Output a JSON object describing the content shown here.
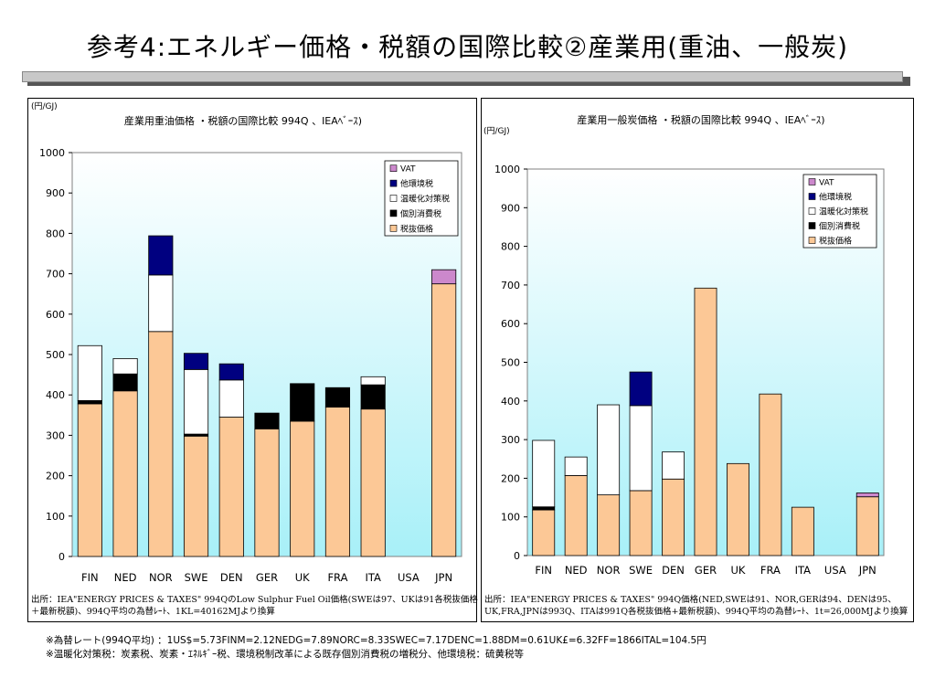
{
  "title": "参考4:エネルギー価格・税額の国際比較②産業用(重油、一般炭)",
  "notes": [
    "※為替レート(994Q平均) ：1US$=5.73FINM=2.12NEDG=7.89NORC=8.33SWEC=7.17DENC=1.88DM=0.61UK£=6.32FF=1866ITAL=104.5円",
    "※温暖化対策税：炭素税、炭素・ｴﾈﾙｷﾞｰ税、環境税制改革による既存個別消費税の増税分、他環境税：硫黄税等"
  ],
  "chart_data": [
    {
      "type": "bar",
      "stacked": true,
      "title": "産業用重油価格 ・税額の国際比較 994Q 、IEAﾍﾞｰｽ)",
      "unit_label": "(円/GJ)",
      "ylim": [
        0,
        1000
      ],
      "yticks": [
        0,
        100,
        200,
        300,
        400,
        500,
        600,
        700,
        800,
        900,
        1000
      ],
      "grid": false,
      "legend_position": "top-right",
      "categories": [
        "FIN",
        "NED",
        "NOR",
        "SWE",
        "DEN",
        "GER",
        "UK",
        "FRA",
        "ITA",
        "USA",
        "JPN"
      ],
      "series": [
        {
          "name": "税抜価格",
          "color": "#fcc896",
          "values": [
            378,
            410,
            557,
            298,
            345,
            316,
            335,
            370,
            365,
            0,
            675
          ]
        },
        {
          "name": "個別消費税",
          "color": "#000000",
          "values": [
            8,
            42,
            0,
            5,
            0,
            39,
            93,
            48,
            60,
            0,
            0
          ]
        },
        {
          "name": "温暖化対策税",
          "color": "#ffffff",
          "values": [
            136,
            38,
            140,
            160,
            92,
            0,
            0,
            0,
            20,
            0,
            0
          ]
        },
        {
          "name": "他環境税",
          "color": "#000080",
          "values": [
            0,
            0,
            97,
            40,
            40,
            0,
            0,
            0,
            0,
            0,
            0
          ]
        },
        {
          "name": "VAT",
          "color": "#cc88cc",
          "values": [
            0,
            0,
            0,
            0,
            0,
            0,
            0,
            0,
            0,
            0,
            35
          ]
        }
      ],
      "source": "出所：IEA\"ENERGY PRICES & TAXES\" 994QのLow Sulphur Fuel Oil価格(SWEは97、UKは91各税抜価格\n＋最新税額)、994Q平均の為替ﾚｰﾄ、1KL=40162MJより換算"
    },
    {
      "type": "bar",
      "stacked": true,
      "title": "産業用一般炭価格 ・税額の国際比較 994Q 、IEAﾍﾞｰｽ)",
      "unit_label": "(円/GJ)",
      "ylim": [
        0,
        1000
      ],
      "yticks": [
        0,
        100,
        200,
        300,
        400,
        500,
        600,
        700,
        800,
        900,
        1000
      ],
      "grid": false,
      "legend_position": "top-right",
      "categories": [
        "FIN",
        "NED",
        "NOR",
        "SWE",
        "DEN",
        "GER",
        "UK",
        "FRA",
        "ITA",
        "USA",
        "JPN"
      ],
      "series": [
        {
          "name": "税抜価格",
          "color": "#fcc896",
          "values": [
            118,
            207,
            157,
            168,
            198,
            692,
            238,
            418,
            125,
            0,
            152
          ]
        },
        {
          "name": "個別消費税",
          "color": "#000000",
          "values": [
            8,
            0,
            0,
            0,
            0,
            0,
            0,
            0,
            0,
            0,
            0
          ]
        },
        {
          "name": "温暖化対策税",
          "color": "#ffffff",
          "values": [
            172,
            48,
            233,
            220,
            70,
            0,
            0,
            0,
            0,
            0,
            0
          ]
        },
        {
          "name": "他環境税",
          "color": "#000080",
          "values": [
            0,
            0,
            0,
            87,
            0,
            0,
            0,
            0,
            0,
            0,
            0
          ]
        },
        {
          "name": "VAT",
          "color": "#cc88cc",
          "values": [
            0,
            0,
            0,
            0,
            0,
            0,
            0,
            0,
            0,
            0,
            10
          ]
        }
      ],
      "source": "出所：IEA\"ENERGY PRICES & TAXES\" 994Q価格(NED,SWEは91、NOR,GERは94、DENは95、\nUK,FRA,JPNは993Q、ITAは991Q各税抜価格+最新税額)、994Q平均の為替ﾚｰﾄ、1t=26,000MJより換算"
    }
  ]
}
